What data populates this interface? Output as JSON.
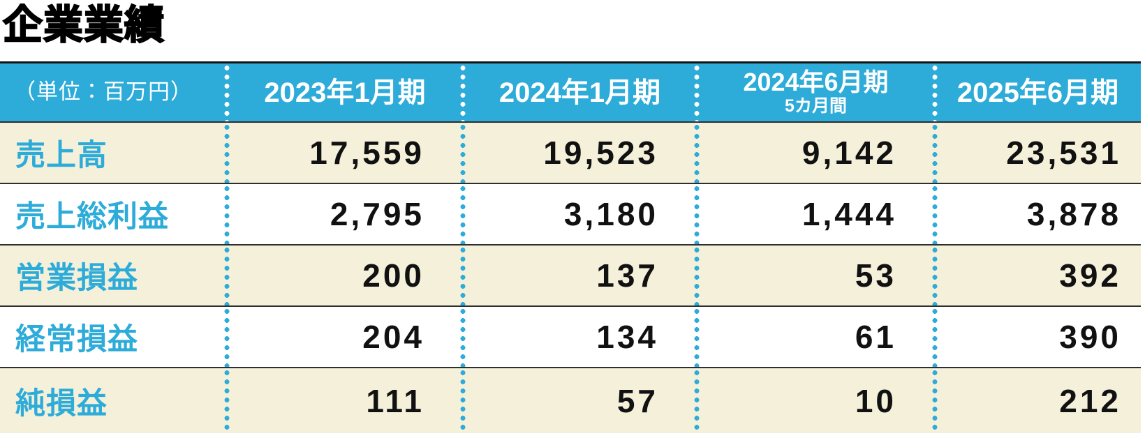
{
  "title": "企業業績",
  "colors": {
    "accent_cyan": "#2dabd9",
    "row_cream": "#f4f0da",
    "separator_dark": "#2e2e2e",
    "number_black": "#111111",
    "header_text": "#ffffff"
  },
  "table": {
    "unit_label": "（単位：百万円）",
    "columns": [
      "2023年1月期",
      "2024年1月期",
      "2024年6月期",
      "2025年6月期"
    ],
    "column_subnote": "5カ月間",
    "rows": [
      {
        "label": "売上高",
        "values": [
          "17,559",
          "19,523",
          "9,142",
          "23,531"
        ]
      },
      {
        "label": "売上総利益",
        "values": [
          "2,795",
          "3,180",
          "1,444",
          "3,878"
        ]
      },
      {
        "label": "営業損益",
        "values": [
          "200",
          "137",
          "53",
          "392"
        ]
      },
      {
        "label": "経常損益",
        "values": [
          "204",
          "134",
          "61",
          "390"
        ]
      },
      {
        "label": "純損益",
        "values": [
          "111",
          "57",
          "10",
          "212"
        ]
      }
    ]
  },
  "chart_data": {
    "type": "table",
    "title": "企業業績",
    "unit": "百万円",
    "categories": [
      "2023年1月期",
      "2024年1月期",
      "2024年6月期（5カ月間）",
      "2025年6月期"
    ],
    "series": [
      {
        "name": "売上高",
        "values": [
          17559,
          19523,
          9142,
          23531
        ]
      },
      {
        "name": "売上総利益",
        "values": [
          2795,
          3180,
          1444,
          3878
        ]
      },
      {
        "name": "営業損益",
        "values": [
          200,
          137,
          53,
          392
        ]
      },
      {
        "name": "経常損益",
        "values": [
          204,
          134,
          61,
          390
        ]
      },
      {
        "name": "純損益",
        "values": [
          111,
          57,
          10,
          212
        ]
      }
    ],
    "layout": {
      "row_label_color": "#2dabd9",
      "header_bg": "#2dabd9",
      "alternating_row_bg": [
        "#f4f0da",
        "#ffffff"
      ],
      "dotted_column_dividers": true
    }
  }
}
